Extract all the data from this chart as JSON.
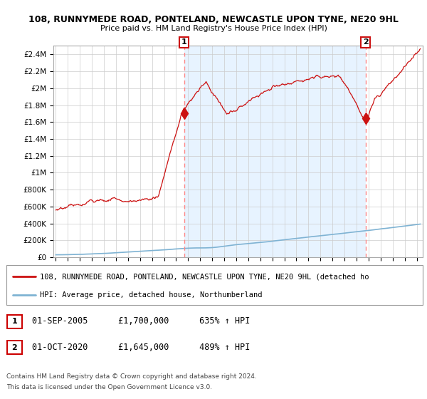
{
  "title1": "108, RUNNYMEDE ROAD, PONTELAND, NEWCASTLE UPON TYNE, NE20 9HL",
  "title2": "Price paid vs. HM Land Registry's House Price Index (HPI)",
  "ylabel_ticks": [
    "£0",
    "£200K",
    "£400K",
    "£600K",
    "£800K",
    "£1M",
    "£1.2M",
    "£1.4M",
    "£1.6M",
    "£1.8M",
    "£2M",
    "£2.2M",
    "£2.4M"
  ],
  "ytick_vals": [
    0,
    200000,
    400000,
    600000,
    800000,
    1000000,
    1200000,
    1400000,
    1600000,
    1800000,
    2000000,
    2200000,
    2400000
  ],
  "ylim": [
    0,
    2500000
  ],
  "xlim_start": 1994.8,
  "xlim_end": 2025.5,
  "hpi_color": "#7fb3d3",
  "price_color": "#cc1111",
  "dashed_line_color": "#ff8888",
  "shaded_color": "#ddeeff",
  "marker1_x": 2005.67,
  "marker1_y": 1700000,
  "marker1_label": "1",
  "marker2_x": 2020.75,
  "marker2_y": 1645000,
  "marker2_label": "2",
  "legend_line1": "108, RUNNYMEDE ROAD, PONTELAND, NEWCASTLE UPON TYNE, NE20 9HL (detached ho",
  "legend_line2": "HPI: Average price, detached house, Northumberland",
  "table_row1": [
    "1",
    "01-SEP-2005",
    "£1,700,000",
    "635% ↑ HPI"
  ],
  "table_row2": [
    "2",
    "01-OCT-2020",
    "£1,645,000",
    "489% ↑ HPI"
  ],
  "footnote1": "Contains HM Land Registry data © Crown copyright and database right 2024.",
  "footnote2": "This data is licensed under the Open Government Licence v3.0.",
  "background_color": "#ffffff",
  "grid_color": "#cccccc"
}
